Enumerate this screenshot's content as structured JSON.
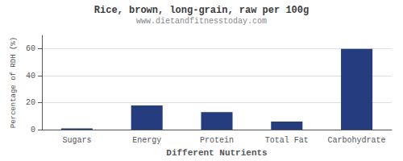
{
  "chart_data": {
    "type": "bar",
    "title": "Rice, brown, long-grain, raw per 100g",
    "subtitle": "www.dietandfitnesstoday.com",
    "xlabel": "Different Nutrients",
    "ylabel": "Percentage of RDH (%)",
    "categories": [
      "Sugars",
      "Energy",
      "Protein",
      "Total Fat",
      "Carbohydrate"
    ],
    "values": [
      1,
      18,
      13,
      6,
      60
    ],
    "color": "#253c7e",
    "ylim": [
      0,
      70
    ],
    "yticks": [
      0,
      20,
      40,
      60
    ],
    "grid": true
  }
}
